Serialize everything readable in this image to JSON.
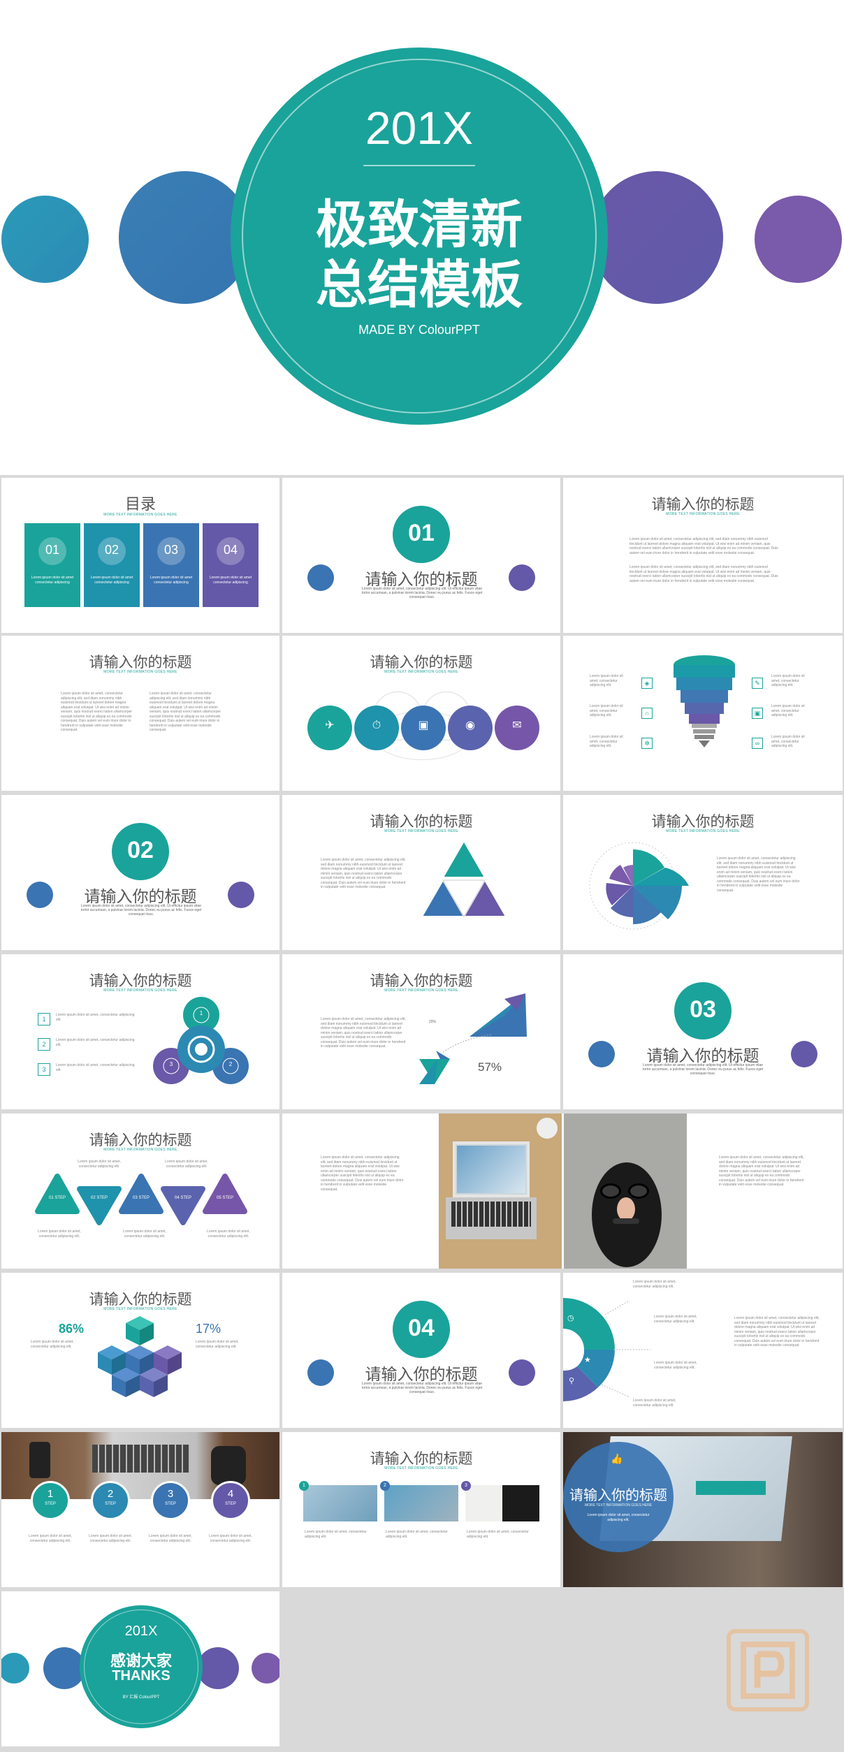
{
  "cover": {
    "year": "201X",
    "title_line1": "极致清新",
    "title_line2": "总结模板",
    "made_by": "MADE BY ColourPPT"
  },
  "toc": {
    "title": "目录",
    "subtitle": "MORE TEXT INFORMATION GOES HERE",
    "items": [
      "01",
      "02",
      "03",
      "04"
    ],
    "item_text": "Lorem ipsum dolor sit amet consectetur adipiscing"
  },
  "common": {
    "slide_title": "请输入你的标题",
    "slide_subtitle": "MORE TEXT INFORMATION GOES HERE",
    "lorem_short": "Lorem ipsum dolor sit amet, consectetur adipiscing elit. Ut efficitur ipsum vitae tortor accumsan, a pulvinar lorem lacinia. Donec eu purus ac felis. Fusce eget consequat risus.",
    "lorem_long": "Lorem ipsum dolor sit amet, consectetur adipiscing elit, sed diam nonummy nibh euismod tincidunt ut laoreet dolore magna aliquam erat volutpat. Ut wisi enim ad minim veniam, quis nostrud exerci tation ullamcorper suscipit lobortis nisl ut aliquip ex ea commodo consequat. Duis autem vel eum iriure dolor in hendrerit in vulputate velit esse molestie consequat.",
    "lorem_small": "Lorem ipsum dolor sit amet, consectetur adipiscing elit."
  },
  "sections": [
    {
      "number": "01",
      "title": "请输入你的标题"
    },
    {
      "number": "02",
      "title": "请输入你的标题"
    },
    {
      "number": "03",
      "title": "请输入你的标题"
    },
    {
      "number": "04",
      "title": "请输入你的标题"
    }
  ],
  "steps_triangles": [
    "01 STEP",
    "02 STEP",
    "03 STEP",
    "04 STEP",
    "05 STEP"
  ],
  "spinner_numbers": [
    "1",
    "2",
    "3"
  ],
  "list_numbers": [
    "1",
    "2",
    "3"
  ],
  "triangle_chart": {
    "percent_label": "57%",
    "small_label": "20%"
  },
  "cubes": {
    "left_percent": "86%",
    "right_percent": "17%"
  },
  "step_circles": [
    {
      "n": "1",
      "label": "STEP"
    },
    {
      "n": "2",
      "label": "STEP"
    },
    {
      "n": "3",
      "label": "STEP"
    },
    {
      "n": "4",
      "label": "STEP"
    }
  ],
  "photo_steps": [
    "1",
    "2",
    "3"
  ],
  "thanks": {
    "year": "201X",
    "line1": "感谢大家",
    "line2": "THANKS",
    "made_by": "BY 汇报 ColourPPT"
  },
  "colors": {
    "teal": "#1aa39a",
    "blue": "#3a7fb5",
    "purple": "#6a58a8",
    "bg": "#d9d9d9"
  }
}
